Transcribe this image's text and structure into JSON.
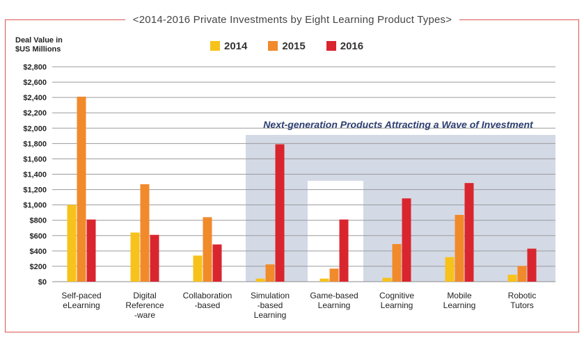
{
  "chart_data": {
    "type": "bar",
    "title": "<2014-2016 Private Investments by Eight Learning Product Types>",
    "ylabel_lines": [
      "Deal Value in",
      "$US Millions"
    ],
    "xlabel": "",
    "ylim": [
      0,
      2800
    ],
    "yticks": [
      0,
      200,
      400,
      600,
      800,
      1000,
      1200,
      1400,
      1600,
      1800,
      2000,
      2200,
      2400,
      2600,
      2800
    ],
    "ytick_labels": [
      "$0",
      "$200",
      "$400",
      "$600",
      "$800",
      "$1,000",
      "$1,200",
      "$1,400",
      "$1,600",
      "$1,800",
      "$2,000",
      "$2,200",
      "$2,400",
      "$2,600",
      "$2,800"
    ],
    "categories": [
      [
        "Self-paced",
        "eLearning"
      ],
      [
        "Digital",
        "Reference",
        "-ware"
      ],
      [
        "Collaboration",
        "-based"
      ],
      [
        "Simulation",
        "-based",
        "Learning"
      ],
      [
        "Game-based",
        "Learning"
      ],
      [
        "Cognitive",
        "Learning"
      ],
      [
        "Mobile",
        "Learning"
      ],
      [
        "Robotic",
        "Tutors"
      ]
    ],
    "series": [
      {
        "name": "2014",
        "color": "#f7c21b",
        "values": [
          1000,
          640,
          340,
          40,
          40,
          50,
          320,
          90
        ]
      },
      {
        "name": "2015",
        "color": "#f18a2b",
        "values": [
          2410,
          1270,
          840,
          225,
          170,
          490,
          870,
          205
        ]
      },
      {
        "name": "2016",
        "color": "#d9262e",
        "values": [
          810,
          610,
          485,
          1790,
          810,
          1085,
          1285,
          430
        ]
      }
    ],
    "annotation": "Next-generation Products Attracting a Wave of Investment",
    "highlight_color": "#d4d9e6",
    "grid": true,
    "legend": "top-center"
  }
}
